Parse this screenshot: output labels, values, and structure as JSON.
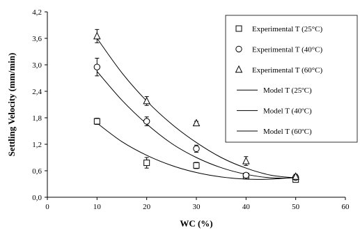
{
  "chart_data": {
    "type": "scatter",
    "xlabel": "WC (%)",
    "ylabel": "Settling Velocity (mm/min)",
    "xlim": [
      0,
      60
    ],
    "ylim": [
      0,
      4.2
    ],
    "x_ticks": [
      "0",
      "10",
      "20",
      "30",
      "40",
      "50",
      "60"
    ],
    "y_ticks": [
      "0,0",
      "0,6",
      "1,2",
      "1,8",
      "2,4",
      "3,0",
      "3,6",
      "4,2"
    ],
    "grid": false,
    "legend_position": "top-right",
    "series": [
      {
        "name": "Experimental T (25°C)",
        "kind": "points",
        "marker": "square",
        "x": [
          10,
          20,
          30,
          40,
          50
        ],
        "y": [
          1.72,
          0.78,
          0.72,
          0.48,
          0.4
        ],
        "error": [
          0.07,
          0.12,
          0.07,
          0.04,
          0.04
        ]
      },
      {
        "name": "Experimental T (40°C)",
        "kind": "points",
        "marker": "circle",
        "x": [
          10,
          20,
          30,
          40,
          50
        ],
        "y": [
          2.95,
          1.72,
          1.1,
          0.5,
          0.45
        ],
        "error": [
          0.2,
          0.1,
          0.08,
          0.04,
          0.04
        ]
      },
      {
        "name": "Experimental T (60°C)",
        "kind": "points",
        "marker": "triangle",
        "x": [
          10,
          20,
          30,
          40,
          50
        ],
        "y": [
          3.65,
          2.18,
          1.68,
          0.82,
          0.47
        ],
        "error": [
          0.15,
          0.1,
          0.04,
          0.1,
          0.05
        ]
      },
      {
        "name": "Model T (25ºC)",
        "kind": "line",
        "x": [
          10,
          15,
          20,
          25,
          30,
          35,
          40,
          45,
          50
        ],
        "y": [
          1.68,
          1.26,
          0.95,
          0.72,
          0.56,
          0.46,
          0.41,
          0.41,
          0.45
        ]
      },
      {
        "name": "Model T (40ºC)",
        "kind": "line",
        "x": [
          10,
          15,
          20,
          25,
          30,
          35,
          40,
          45,
          50
        ],
        "y": [
          2.85,
          2.2,
          1.66,
          1.22,
          0.9,
          0.67,
          0.52,
          0.44,
          0.44
        ]
      },
      {
        "name": "Model T (60ºC)",
        "kind": "line",
        "x": [
          10,
          15,
          20,
          25,
          30,
          35,
          40,
          45,
          50
        ],
        "y": [
          3.6,
          2.82,
          2.18,
          1.66,
          1.24,
          0.9,
          0.66,
          0.5,
          0.44
        ]
      }
    ]
  }
}
